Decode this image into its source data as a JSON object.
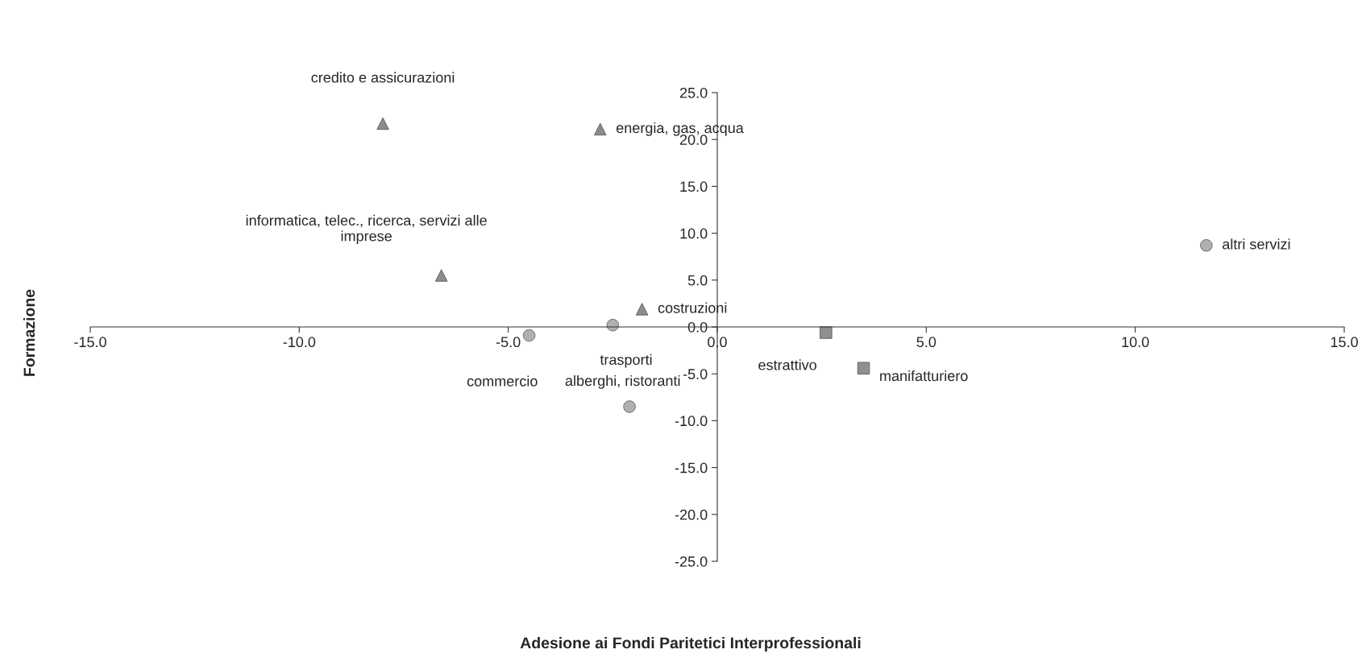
{
  "chart_data": {
    "type": "scatter",
    "xlabel": "Adesione ai Fondi Paritetici Interprofessionali",
    "ylabel": "Formazione",
    "series": [
      {
        "marker": "triangle",
        "color": "#8c8c8c",
        "x": [
          -8.0,
          -2.8,
          -6.6,
          -1.8
        ],
        "values": [
          21.7,
          21.1,
          5.5,
          1.9
        ]
      },
      {
        "marker": "circle",
        "color": "#b0b0b0",
        "x": [
          -2.5,
          -4.5,
          -2.1,
          11.7
        ],
        "values": [
          0.2,
          -0.9,
          -8.5,
          8.7
        ]
      },
      {
        "marker": "square",
        "color": "#8f8f8f",
        "x": [
          2.6,
          3.5
        ],
        "values": [
          -0.6,
          -4.4
        ]
      }
    ],
    "annotations": [
      {
        "text": "credito e assicurazioni",
        "x": -8.0,
        "y": 21.7
      },
      {
        "text": "energia, gas, acqua",
        "x": -2.8,
        "y": 21.1
      },
      {
        "text": "informatica, telec., ricerca, servizi alle\nimprese",
        "x": -6.6,
        "y": 5.5
      },
      {
        "text": "costruzioni",
        "x": -1.8,
        "y": 1.9
      },
      {
        "text": "trasporti",
        "x": -2.5,
        "y": 0.2
      },
      {
        "text": "commercio",
        "x": -4.5,
        "y": -0.9
      },
      {
        "text": "alberghi, ristoranti",
        "x": -2.1,
        "y": -8.5
      },
      {
        "text": "estrattivo",
        "x": 2.6,
        "y": -0.6
      },
      {
        "text": "manifatturiero",
        "x": 3.5,
        "y": -4.4
      },
      {
        "text": "altri servizi",
        "x": 11.7,
        "y": 8.7
      }
    ],
    "xlim": [
      -15,
      15
    ],
    "xticks": [
      {
        "value": -15,
        "label": "-15.0"
      },
      {
        "value": -10,
        "label": "-10.0"
      },
      {
        "value": -5,
        "label": "-5.0"
      },
      {
        "value": 0,
        "label": "0.0"
      },
      {
        "value": 5,
        "label": "5.0"
      },
      {
        "value": 10,
        "label": "10.0"
      },
      {
        "value": 15,
        "label": "15.0"
      }
    ],
    "ylim": [
      -25,
      25
    ],
    "yticks": [
      {
        "value": -25,
        "label": "-25.0"
      },
      {
        "value": -20,
        "label": "-20.0"
      },
      {
        "value": -15,
        "label": "-15.0"
      },
      {
        "value": -10,
        "label": "-10.0"
      },
      {
        "value": -5,
        "label": "-5.0"
      },
      {
        "value": 0,
        "label": "0.0"
      },
      {
        "value": 5,
        "label": "5.0"
      },
      {
        "value": 10,
        "label": "10.0"
      },
      {
        "value": 15,
        "label": "15.0"
      },
      {
        "value": 20,
        "label": "20.0"
      },
      {
        "value": 25,
        "label": "25.0"
      }
    ],
    "grid": false,
    "legend": false
  }
}
